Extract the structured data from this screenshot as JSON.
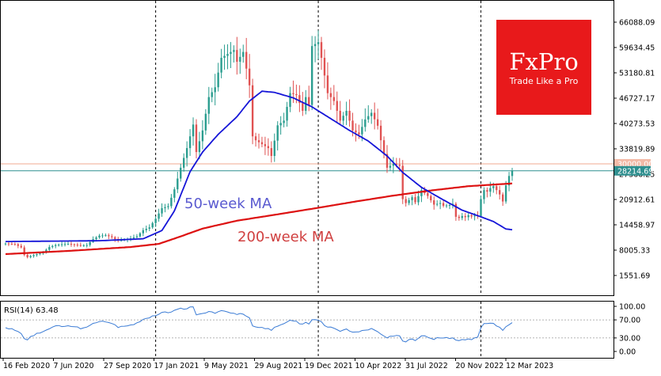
{
  "chart_data": [
    {
      "type": "candlestick",
      "title": "",
      "ylim": [
        0,
        70000
      ],
      "y_ticks": [
        "66088.09",
        "59634.45",
        "53180.81",
        "46727.17",
        "40273.53",
        "33819.89",
        "27366.25",
        "20912.61",
        "14458.97",
        "8005.33",
        "1551.69"
      ],
      "x_ticks": [
        "16 Feb 2020",
        "7 Jun 2020",
        "27 Sep 2020",
        "17 Jan 2021",
        "9 May 2021",
        "29 Aug 2021",
        "19 Dec 2021",
        "10 Apr 2022",
        "31 Jul 2022",
        "20 Nov 2022",
        "12 Mar 2023"
      ],
      "x_range_weeks": [
        0,
        162
      ],
      "horizontal_lines": [
        {
          "label": "30000.00",
          "value": 30000,
          "color": "#f0a890"
        },
        {
          "label": "28214.69",
          "value": 28214.69,
          "color": "#2f8f8f"
        }
      ],
      "vertical_separators_weeks": [
        48,
        100,
        152
      ],
      "annotations": [
        {
          "text": "50-week MA",
          "color": "#5a5ad0"
        },
        {
          "text": "200-week MA",
          "color": "#d04040"
        }
      ],
      "colors": {
        "bull": "#2a9d8f",
        "bear": "#e05252",
        "ma50": "#1515d8",
        "ma200": "#dd1111"
      },
      "ohlc_keypoints_close": [
        [
          0,
          9700
        ],
        [
          3,
          9500
        ],
        [
          5,
          8700
        ],
        [
          6,
          6800
        ],
        [
          7,
          6200
        ],
        [
          8,
          6500
        ],
        [
          10,
          7000
        ],
        [
          12,
          7400
        ],
        [
          14,
          8800
        ],
        [
          16,
          9300
        ],
        [
          18,
          9500
        ],
        [
          20,
          9600
        ],
        [
          22,
          9400
        ],
        [
          24,
          9200
        ],
        [
          26,
          9300
        ],
        [
          28,
          10800
        ],
        [
          30,
          11700
        ],
        [
          32,
          11800
        ],
        [
          34,
          11300
        ],
        [
          36,
          10400
        ],
        [
          38,
          10700
        ],
        [
          40,
          11000
        ],
        [
          42,
          11500
        ],
        [
          44,
          13100
        ],
        [
          46,
          13800
        ],
        [
          48,
          16000
        ],
        [
          50,
          18700
        ],
        [
          52,
          19200
        ],
        [
          54,
          23500
        ],
        [
          56,
          29000
        ],
        [
          58,
          34000
        ],
        [
          60,
          40000
        ],
        [
          61,
          33000
        ],
        [
          63,
          38500
        ],
        [
          65,
          47000
        ],
        [
          67,
          49500
        ],
        [
          69,
          57000
        ],
        [
          71,
          58000
        ],
        [
          73,
          59000
        ],
        [
          74,
          56000
        ],
        [
          76,
          58500
        ],
        [
          78,
          50000
        ],
        [
          79,
          37000
        ],
        [
          80,
          36000
        ],
        [
          82,
          35000
        ],
        [
          84,
          34000
        ],
        [
          85,
          32000
        ],
        [
          87,
          39800
        ],
        [
          89,
          41000
        ],
        [
          91,
          48000
        ],
        [
          93,
          47500
        ],
        [
          95,
          43500
        ],
        [
          96,
          47000
        ],
        [
          97,
          45000
        ],
        [
          98,
          60000
        ],
        [
          100,
          61000
        ],
        [
          101,
          57000
        ],
        [
          103,
          48000
        ],
        [
          105,
          46000
        ],
        [
          107,
          41000
        ],
        [
          109,
          43500
        ],
        [
          111,
          38500
        ],
        [
          113,
          37500
        ],
        [
          115,
          41300
        ],
        [
          117,
          43000
        ],
        [
          119,
          39700
        ],
        [
          120,
          36000
        ],
        [
          122,
          29000
        ],
        [
          124,
          30000
        ],
        [
          126,
          29500
        ],
        [
          127,
          21000
        ],
        [
          128,
          20000
        ],
        [
          130,
          21500
        ],
        [
          131,
          20200
        ],
        [
          133,
          23300
        ],
        [
          135,
          21800
        ],
        [
          137,
          19600
        ],
        [
          139,
          20000
        ],
        [
          140,
          19300
        ],
        [
          142,
          19500
        ],
        [
          143,
          19800
        ],
        [
          144,
          16500
        ],
        [
          145,
          16200
        ],
        [
          146,
          16700
        ],
        [
          147,
          16400
        ],
        [
          148,
          16900
        ],
        [
          149,
          16600
        ],
        [
          150,
          16800
        ],
        [
          151,
          16700
        ],
        [
          152,
          21000
        ],
        [
          153,
          23300
        ],
        [
          154,
          22900
        ],
        [
          155,
          23800
        ],
        [
          156,
          24300
        ],
        [
          157,
          23300
        ],
        [
          158,
          22200
        ],
        [
          159,
          20400
        ],
        [
          160,
          24500
        ],
        [
          161,
          26900
        ],
        [
          162,
          28214
        ]
      ],
      "ma50_keypoints": [
        [
          0,
          10200
        ],
        [
          30,
          10400
        ],
        [
          44,
          10900
        ],
        [
          50,
          13000
        ],
        [
          54,
          18000
        ],
        [
          59,
          28000
        ],
        [
          63,
          33000
        ],
        [
          68,
          37500
        ],
        [
          74,
          42000
        ],
        [
          78,
          46000
        ],
        [
          82,
          48500
        ],
        [
          86,
          48200
        ],
        [
          92,
          46800
        ],
        [
          98,
          44500
        ],
        [
          104,
          41500
        ],
        [
          110,
          38500
        ],
        [
          116,
          35800
        ],
        [
          122,
          32000
        ],
        [
          127,
          27800
        ],
        [
          133,
          24000
        ],
        [
          140,
          20800
        ],
        [
          146,
          18200
        ],
        [
          152,
          16500
        ],
        [
          156,
          15300
        ],
        [
          160,
          13400
        ],
        [
          162,
          13200
        ]
      ],
      "ma200_keypoints": [
        [
          0,
          7000
        ],
        [
          20,
          7800
        ],
        [
          40,
          8800
        ],
        [
          49,
          9600
        ],
        [
          56,
          11500
        ],
        [
          63,
          13500
        ],
        [
          74,
          15500
        ],
        [
          86,
          17000
        ],
        [
          100,
          18800
        ],
        [
          112,
          20400
        ],
        [
          124,
          21900
        ],
        [
          136,
          23200
        ],
        [
          148,
          24300
        ],
        [
          162,
          25000
        ]
      ]
    },
    {
      "type": "line",
      "title": "RSI(14) 63.48",
      "ylim": [
        0,
        100
      ],
      "y_ticks": [
        "100.00",
        "70.00",
        "30.00",
        "0.00"
      ],
      "levels": [
        70,
        30
      ],
      "series": [
        {
          "values_keypoints": [
            [
              0,
              52
            ],
            [
              3,
              48
            ],
            [
              5,
              40
            ],
            [
              6,
              30
            ],
            [
              7,
              26
            ],
            [
              8,
              33
            ],
            [
              10,
              40
            ],
            [
              12,
              44
            ],
            [
              14,
              52
            ],
            [
              16,
              55
            ],
            [
              18,
              57
            ],
            [
              20,
              57
            ],
            [
              22,
              54
            ],
            [
              24,
              52
            ],
            [
              26,
              53
            ],
            [
              28,
              63
            ],
            [
              30,
              68
            ],
            [
              32,
              67
            ],
            [
              34,
              62
            ],
            [
              36,
              55
            ],
            [
              38,
              57
            ],
            [
              40,
              59
            ],
            [
              42,
              62
            ],
            [
              44,
              72
            ],
            [
              46,
              74
            ],
            [
              48,
              80
            ],
            [
              50,
              88
            ],
            [
              52,
              87
            ],
            [
              54,
              90
            ],
            [
              56,
              95
            ],
            [
              58,
              96
            ],
            [
              60,
              98
            ],
            [
              61,
              80
            ],
            [
              63,
              84
            ],
            [
              65,
              88
            ],
            [
              67,
              86
            ],
            [
              69,
              89
            ],
            [
              71,
              87
            ],
            [
              73,
              86
            ],
            [
              74,
              82
            ],
            [
              76,
              83
            ],
            [
              78,
              73
            ],
            [
              79,
              55
            ],
            [
              80,
              53
            ],
            [
              82,
              52
            ],
            [
              84,
              50
            ],
            [
              85,
              48
            ],
            [
              87,
              58
            ],
            [
              89,
              60
            ],
            [
              91,
              68
            ],
            [
              93,
              66
            ],
            [
              95,
              60
            ],
            [
              96,
              64
            ],
            [
              97,
              62
            ],
            [
              98,
              71
            ],
            [
              100,
              70
            ],
            [
              101,
              64
            ],
            [
              103,
              54
            ],
            [
              105,
              52
            ],
            [
              107,
              46
            ],
            [
              109,
              50
            ],
            [
              111,
              44
            ],
            [
              113,
              42
            ],
            [
              115,
              49
            ],
            [
              117,
              50
            ],
            [
              119,
              45
            ],
            [
              120,
              40
            ],
            [
              122,
              32
            ],
            [
              124,
              35
            ],
            [
              126,
              34
            ],
            [
              127,
              24
            ],
            [
              128,
              23
            ],
            [
              130,
              28
            ],
            [
              131,
              26
            ],
            [
              133,
              35
            ],
            [
              135,
              32
            ],
            [
              137,
              28
            ],
            [
              139,
              30
            ],
            [
              140,
              29
            ],
            [
              142,
              30
            ],
            [
              143,
              31
            ],
            [
              144,
              24
            ],
            [
              145,
              23
            ],
            [
              146,
              27
            ],
            [
              147,
              26
            ],
            [
              148,
              29
            ],
            [
              149,
              28
            ],
            [
              150,
              30
            ],
            [
              151,
              30
            ],
            [
              152,
              54
            ],
            [
              153,
              62
            ],
            [
              154,
              60
            ],
            [
              155,
              63
            ],
            [
              156,
              64
            ],
            [
              157,
              58
            ],
            [
              158,
              52
            ],
            [
              159,
              46
            ],
            [
              160,
              55
            ],
            [
              161,
              60
            ],
            [
              162,
              63.48
            ]
          ]
        }
      ]
    }
  ],
  "logo": {
    "brand": "FxPro",
    "tagline": "Trade Like a Pro",
    "color": "#e8191b"
  }
}
